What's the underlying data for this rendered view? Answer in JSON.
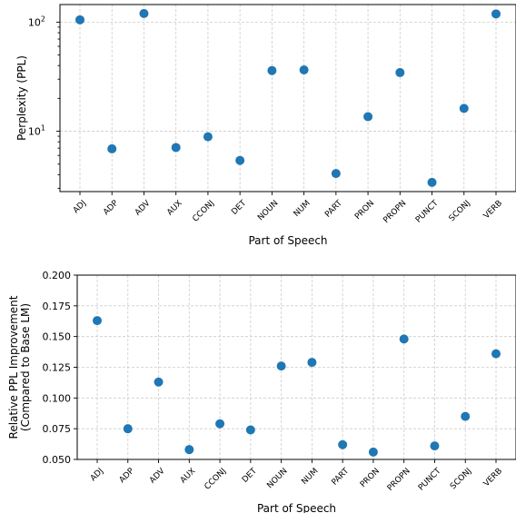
{
  "chart_data": [
    {
      "type": "scatter",
      "xlabel": "Part of Speech",
      "ylabel": "Perplexity (PPL)",
      "yscale": "log",
      "ylim": [
        2.8,
        145
      ],
      "y_ticks": [
        {
          "value": 10,
          "base": "10",
          "exp": "1"
        },
        {
          "value": 100,
          "base": "10",
          "exp": "2"
        }
      ],
      "grid": true,
      "marker_color": "#1f77b4",
      "categories": [
        "ADJ",
        "ADP",
        "ADV",
        "AUX",
        "CCONJ",
        "DET",
        "NOUN",
        "NUM",
        "PART",
        "PRON",
        "PROPN",
        "PUNCT",
        "SCONJ",
        "VERB"
      ],
      "values": [
        105,
        6.9,
        120,
        7.1,
        8.9,
        5.4,
        36,
        36.5,
        4.1,
        13.6,
        34.5,
        3.4,
        16.2,
        119
      ]
    },
    {
      "type": "scatter",
      "xlabel": "Part of Speech",
      "ylabel": [
        "Relative PPL Improvement",
        "(Compared to Base LM)"
      ],
      "ylim": [
        0.05,
        0.2
      ],
      "y_ticks": [
        "0.050",
        "0.075",
        "0.100",
        "0.125",
        "0.150",
        "0.175",
        "0.200"
      ],
      "grid": true,
      "marker_color": "#1f77b4",
      "categories": [
        "ADJ",
        "ADP",
        "ADV",
        "AUX",
        "CCONJ",
        "DET",
        "NOUN",
        "NUM",
        "PART",
        "PRON",
        "PROPN",
        "PUNCT",
        "SCONJ",
        "VERB"
      ],
      "values": [
        0.163,
        0.075,
        0.113,
        0.058,
        0.079,
        0.074,
        0.126,
        0.129,
        0.062,
        0.056,
        0.148,
        0.061,
        0.085,
        0.136
      ]
    }
  ]
}
